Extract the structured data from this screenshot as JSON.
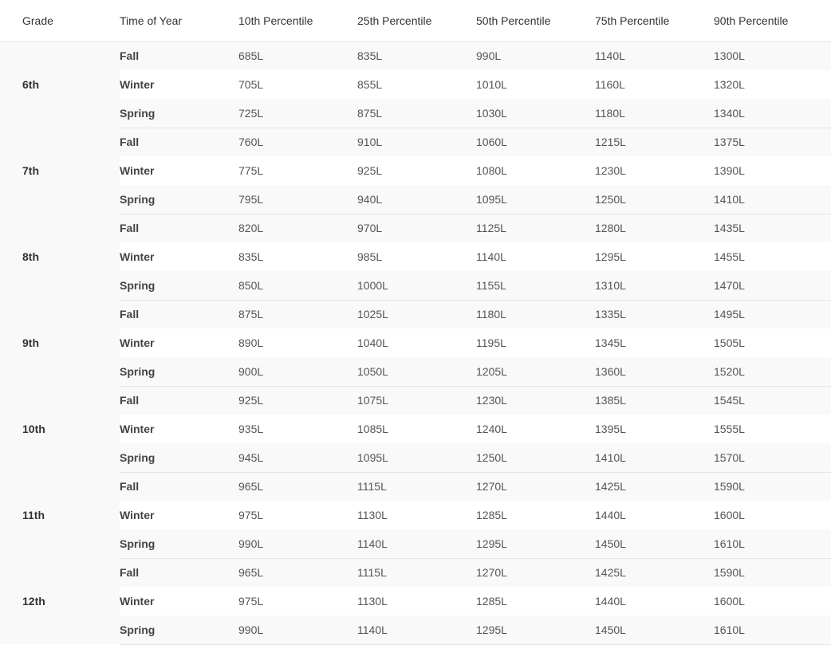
{
  "table": {
    "headers": [
      "Grade",
      "Time of Year",
      "10th Percentile",
      "25th Percentile",
      "50th Percentile",
      "75th Percentile",
      "90th Percentile"
    ],
    "groups": [
      {
        "grade": "6th",
        "rows": [
          {
            "time": "Fall",
            "values": [
              "685L",
              "835L",
              "990L",
              "1140L",
              "1300L"
            ]
          },
          {
            "time": "Winter",
            "values": [
              "705L",
              "855L",
              "1010L",
              "1160L",
              "1320L"
            ]
          },
          {
            "time": "Spring",
            "values": [
              "725L",
              "875L",
              "1030L",
              "1180L",
              "1340L"
            ]
          }
        ]
      },
      {
        "grade": "7th",
        "rows": [
          {
            "time": "Fall",
            "values": [
              "760L",
              "910L",
              "1060L",
              "1215L",
              "1375L"
            ]
          },
          {
            "time": "Winter",
            "values": [
              "775L",
              "925L",
              "1080L",
              "1230L",
              "1390L"
            ]
          },
          {
            "time": "Spring",
            "values": [
              "795L",
              "940L",
              "1095L",
              "1250L",
              "1410L"
            ]
          }
        ]
      },
      {
        "grade": "8th",
        "rows": [
          {
            "time": "Fall",
            "values": [
              "820L",
              "970L",
              "1125L",
              "1280L",
              "1435L"
            ]
          },
          {
            "time": "Winter",
            "values": [
              "835L",
              "985L",
              "1140L",
              "1295L",
              "1455L"
            ]
          },
          {
            "time": "Spring",
            "values": [
              "850L",
              "1000L",
              "1155L",
              "1310L",
              "1470L"
            ]
          }
        ]
      },
      {
        "grade": "9th",
        "rows": [
          {
            "time": "Fall",
            "values": [
              "875L",
              "1025L",
              "1180L",
              "1335L",
              "1495L"
            ]
          },
          {
            "time": "Winter",
            "values": [
              "890L",
              "1040L",
              "1195L",
              "1345L",
              "1505L"
            ]
          },
          {
            "time": "Spring",
            "values": [
              "900L",
              "1050L",
              "1205L",
              "1360L",
              "1520L"
            ]
          }
        ]
      },
      {
        "grade": "10th",
        "rows": [
          {
            "time": "Fall",
            "values": [
              "925L",
              "1075L",
              "1230L",
              "1385L",
              "1545L"
            ]
          },
          {
            "time": "Winter",
            "values": [
              "935L",
              "1085L",
              "1240L",
              "1395L",
              "1555L"
            ]
          },
          {
            "time": "Spring",
            "values": [
              "945L",
              "1095L",
              "1250L",
              "1410L",
              "1570L"
            ]
          }
        ]
      },
      {
        "grade": "11th",
        "rows": [
          {
            "time": "Fall",
            "values": [
              "965L",
              "1115L",
              "1270L",
              "1425L",
              "1590L"
            ]
          },
          {
            "time": "Winter",
            "values": [
              "975L",
              "1130L",
              "1285L",
              "1440L",
              "1600L"
            ]
          },
          {
            "time": "Spring",
            "values": [
              "990L",
              "1140L",
              "1295L",
              "1450L",
              "1610L"
            ]
          }
        ]
      },
      {
        "grade": "12th",
        "rows": [
          {
            "time": "Fall",
            "values": [
              "965L",
              "1115L",
              "1270L",
              "1425L",
              "1590L"
            ]
          },
          {
            "time": "Winter",
            "values": [
              "975L",
              "1130L",
              "1285L",
              "1440L",
              "1600L"
            ]
          },
          {
            "time": "Spring",
            "values": [
              "990L",
              "1140L",
              "1295L",
              "1450L",
              "1610L"
            ]
          }
        ]
      }
    ]
  }
}
